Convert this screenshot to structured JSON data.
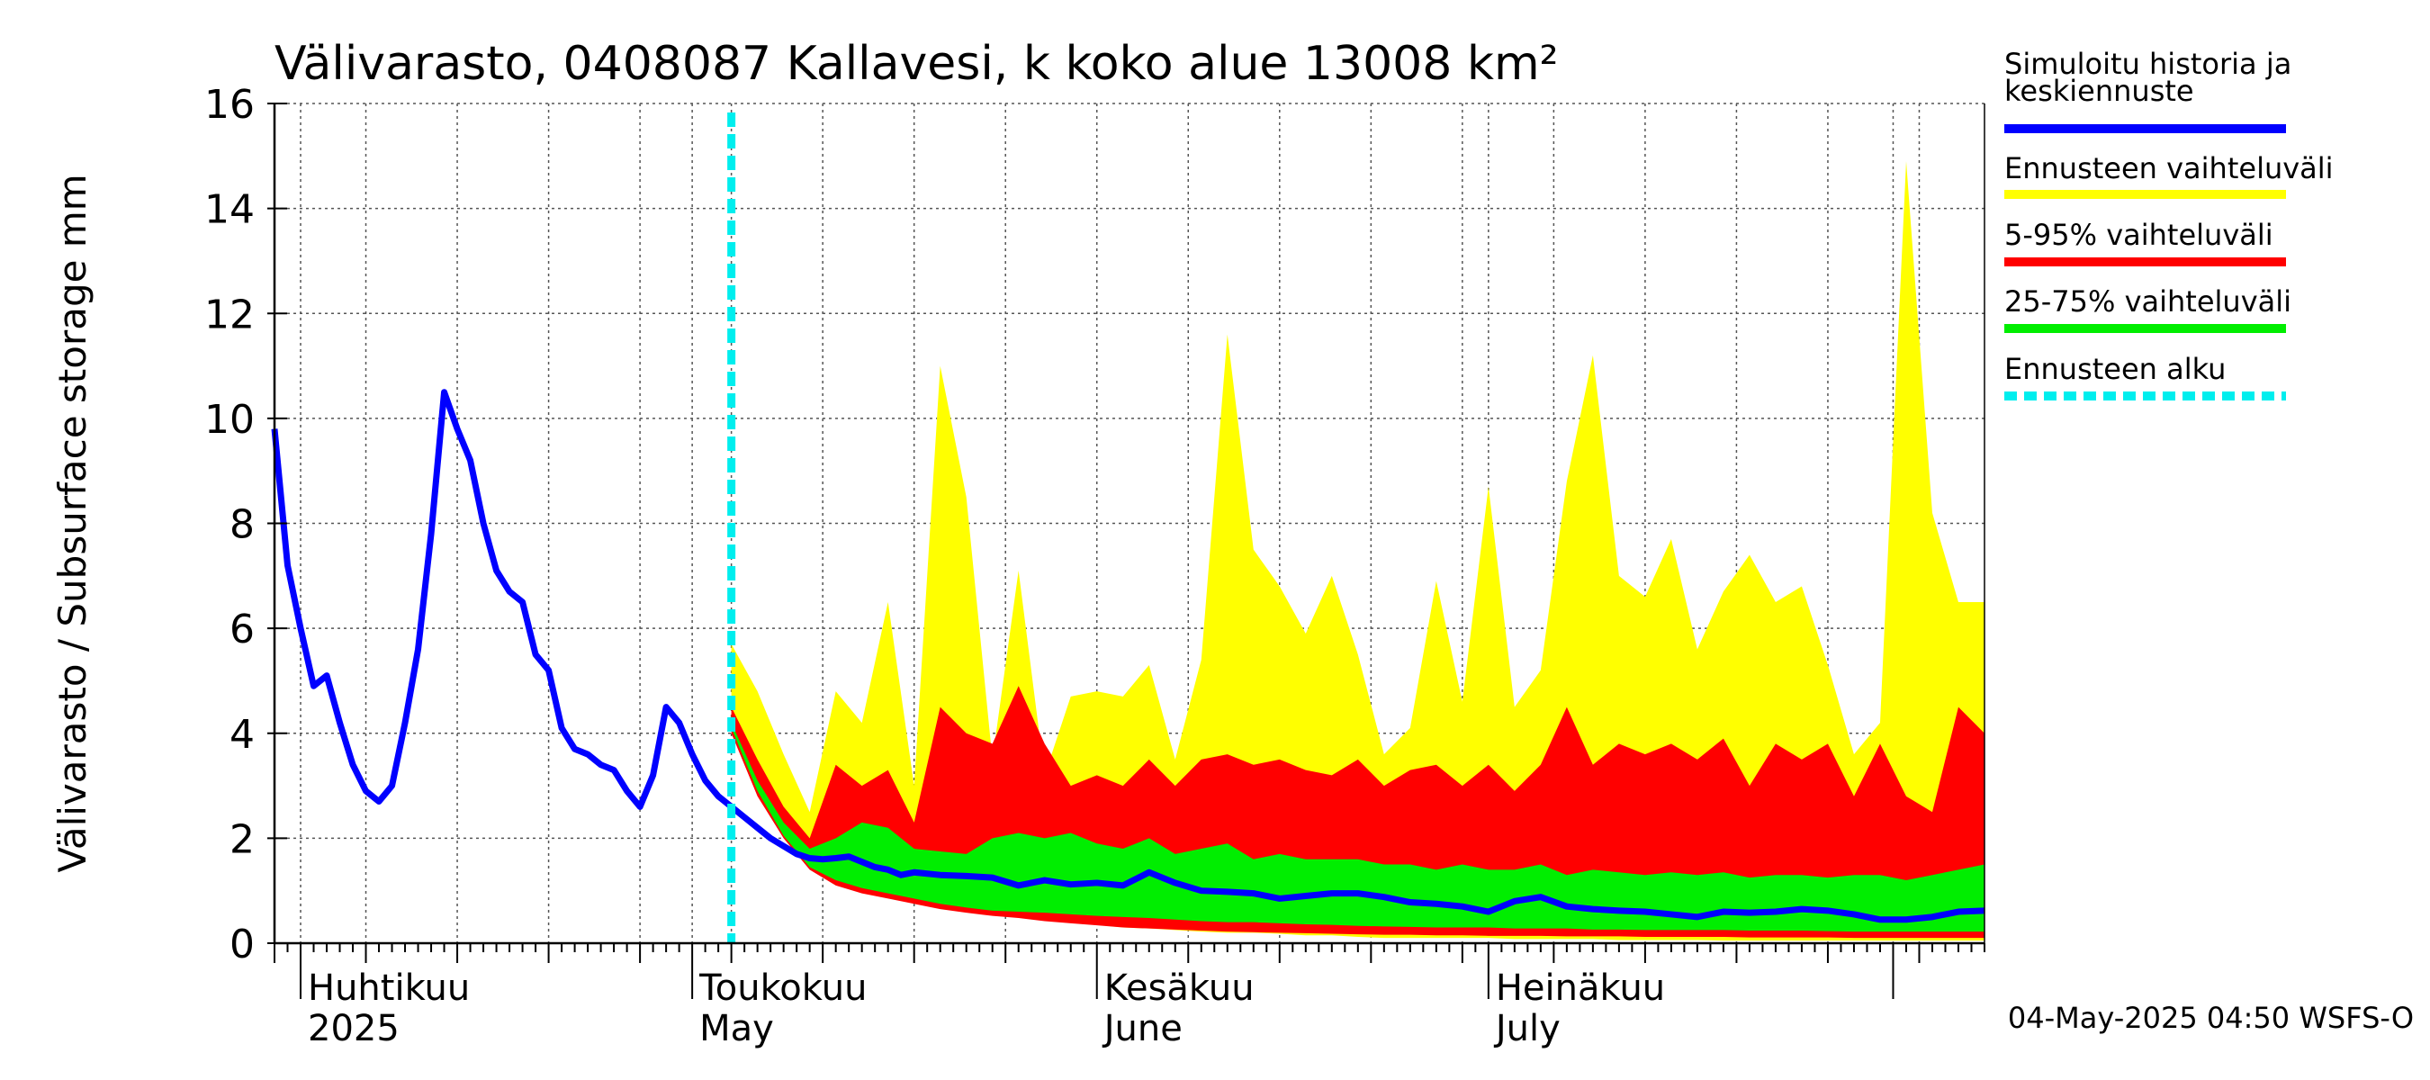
{
  "chart_data": {
    "type": "area",
    "title": "Välivarasto, 0408087 Kallavesi, k koko alue 13008 km²",
    "ylabel": "Välivarasto / Subsurface storage  mm",
    "xlabel": "",
    "ylim": [
      0,
      16
    ],
    "yticks": [
      0,
      2,
      4,
      6,
      8,
      10,
      12,
      14,
      16
    ],
    "x_start": "2025-03-30",
    "x_end": "2025-08-08",
    "grid": true,
    "month_labels": [
      {
        "date": "2025-04-01",
        "line1": "Huhtikuu",
        "line2": "2025"
      },
      {
        "date": "2025-05-01",
        "line1": "Toukokuu",
        "line2": "May"
      },
      {
        "date": "2025-06-01",
        "line1": "Kesäkuu",
        "line2": "June"
      },
      {
        "date": "2025-07-01",
        "line1": "Heinäkuu",
        "line2": "July"
      }
    ],
    "forecast_start": "2025-05-04",
    "history": {
      "name": "Simuloitu historia ja keskiennuste",
      "color": "#0000ff",
      "x": [
        "2025-03-30",
        "2025-03-31",
        "2025-04-01",
        "2025-04-02",
        "2025-04-03",
        "2025-04-04",
        "2025-04-05",
        "2025-04-06",
        "2025-04-07",
        "2025-04-08",
        "2025-04-09",
        "2025-04-10",
        "2025-04-11",
        "2025-04-12",
        "2025-04-13",
        "2025-04-14",
        "2025-04-15",
        "2025-04-16",
        "2025-04-17",
        "2025-04-18",
        "2025-04-19",
        "2025-04-20",
        "2025-04-21",
        "2025-04-22",
        "2025-04-23",
        "2025-04-24",
        "2025-04-25",
        "2025-04-26",
        "2025-04-27",
        "2025-04-28",
        "2025-04-29",
        "2025-04-30",
        "2025-05-01",
        "2025-05-02",
        "2025-05-03",
        "2025-05-04"
      ],
      "y": [
        9.8,
        7.2,
        6.0,
        4.9,
        5.1,
        4.2,
        3.4,
        2.9,
        2.7,
        3.0,
        4.2,
        5.6,
        7.8,
        10.5,
        9.8,
        9.2,
        8.0,
        7.1,
        6.7,
        6.5,
        5.5,
        5.2,
        4.1,
        3.7,
        3.6,
        3.4,
        3.3,
        2.9,
        2.6,
        3.2,
        4.5,
        4.2,
        3.6,
        3.1,
        2.8,
        2.6
      ]
    },
    "median_forecast": {
      "x": [
        "2025-05-04",
        "2025-05-05",
        "2025-05-06",
        "2025-05-07",
        "2025-05-08",
        "2025-05-09",
        "2025-05-10",
        "2025-05-11",
        "2025-05-12",
        "2025-05-13",
        "2025-05-14",
        "2025-05-15",
        "2025-05-16",
        "2025-05-17",
        "2025-05-18",
        "2025-05-20",
        "2025-05-22",
        "2025-05-24",
        "2025-05-26",
        "2025-05-28",
        "2025-05-30",
        "2025-06-01",
        "2025-06-03",
        "2025-06-05",
        "2025-06-07",
        "2025-06-09",
        "2025-06-11",
        "2025-06-13",
        "2025-06-15",
        "2025-06-17",
        "2025-06-19",
        "2025-06-21",
        "2025-06-23",
        "2025-06-25",
        "2025-06-27",
        "2025-06-29",
        "2025-07-01",
        "2025-07-03",
        "2025-07-05",
        "2025-07-07",
        "2025-07-09",
        "2025-07-11",
        "2025-07-13",
        "2025-07-15",
        "2025-07-17",
        "2025-07-19",
        "2025-07-21",
        "2025-07-23",
        "2025-07-25",
        "2025-07-27",
        "2025-07-29",
        "2025-07-31",
        "2025-08-02",
        "2025-08-04",
        "2025-08-06",
        "2025-08-08"
      ],
      "y": [
        2.6,
        2.4,
        2.2,
        2.0,
        1.85,
        1.7,
        1.62,
        1.6,
        1.62,
        1.65,
        1.55,
        1.45,
        1.4,
        1.3,
        1.35,
        1.3,
        1.28,
        1.25,
        1.1,
        1.2,
        1.12,
        1.15,
        1.1,
        1.35,
        1.15,
        1.0,
        0.98,
        0.95,
        0.85,
        0.9,
        0.95,
        0.95,
        0.88,
        0.78,
        0.75,
        0.7,
        0.6,
        0.8,
        0.88,
        0.7,
        0.65,
        0.62,
        0.6,
        0.55,
        0.5,
        0.6,
        0.58,
        0.6,
        0.65,
        0.62,
        0.55,
        0.45,
        0.45,
        0.5,
        0.6,
        0.62
      ]
    },
    "bands_x": [
      "2025-05-04",
      "2025-05-06",
      "2025-05-08",
      "2025-05-10",
      "2025-05-12",
      "2025-05-14",
      "2025-05-16",
      "2025-05-18",
      "2025-05-20",
      "2025-05-22",
      "2025-05-24",
      "2025-05-26",
      "2025-05-28",
      "2025-05-30",
      "2025-06-01",
      "2025-06-03",
      "2025-06-05",
      "2025-06-07",
      "2025-06-09",
      "2025-06-11",
      "2025-06-13",
      "2025-06-15",
      "2025-06-17",
      "2025-06-19",
      "2025-06-21",
      "2025-06-23",
      "2025-06-25",
      "2025-06-27",
      "2025-06-29",
      "2025-07-01",
      "2025-07-03",
      "2025-07-05",
      "2025-07-07",
      "2025-07-09",
      "2025-07-11",
      "2025-07-13",
      "2025-07-15",
      "2025-07-17",
      "2025-07-19",
      "2025-07-21",
      "2025-07-23",
      "2025-07-25",
      "2025-07-27",
      "2025-07-29",
      "2025-07-31",
      "2025-08-02",
      "2025-08-04",
      "2025-08-06",
      "2025-08-08"
    ],
    "bands": [
      {
        "name": "Ennusteen vaihteluväli",
        "color": "#ffff00",
        "upper": [
          5.7,
          4.8,
          3.6,
          2.5,
          4.8,
          4.2,
          6.5,
          3.0,
          11.0,
          8.5,
          3.5,
          7.1,
          3.2,
          4.7,
          4.8,
          4.7,
          5.3,
          3.5,
          5.4,
          11.6,
          7.5,
          6.8,
          5.9,
          7.0,
          5.5,
          3.6,
          4.1,
          6.9,
          4.6,
          8.7,
          4.5,
          5.2,
          8.8,
          11.2,
          7.0,
          6.6,
          7.7,
          5.6,
          6.7,
          7.4,
          6.5,
          6.8,
          5.3,
          3.6,
          4.2,
          14.9,
          8.2,
          6.5,
          6.5
        ],
        "lower": [
          4.2,
          3.0,
          2.2,
          1.5,
          1.2,
          1.0,
          0.9,
          0.8,
          0.7,
          0.6,
          0.55,
          0.5,
          0.45,
          0.4,
          0.35,
          0.3,
          0.28,
          0.25,
          0.22,
          0.2,
          0.2,
          0.18,
          0.15,
          0.15,
          0.12,
          0.1,
          0.1,
          0.1,
          0.1,
          0.1,
          0.08,
          0.08,
          0.08,
          0.08,
          0.06,
          0.06,
          0.06,
          0.06,
          0.05,
          0.05,
          0.05,
          0.05,
          0.05,
          0.05,
          0.05,
          0.05,
          0.05,
          0.05,
          0.05
        ]
      },
      {
        "name": "5-95% vaihteluväli",
        "color": "#ff0000",
        "upper": [
          4.5,
          3.5,
          2.6,
          2.0,
          3.4,
          3.0,
          3.3,
          2.3,
          4.5,
          4.0,
          3.8,
          4.9,
          3.8,
          3.0,
          3.2,
          3.0,
          3.5,
          3.0,
          3.5,
          3.6,
          3.4,
          3.5,
          3.3,
          3.2,
          3.5,
          3.0,
          3.3,
          3.4,
          3.0,
          3.4,
          2.9,
          3.4,
          4.5,
          3.4,
          3.8,
          3.6,
          3.8,
          3.5,
          3.9,
          3.0,
          3.8,
          3.5,
          3.8,
          2.8,
          3.8,
          2.8,
          2.5,
          4.5,
          4.0
        ],
        "lower": [
          4.0,
          2.8,
          2.0,
          1.4,
          1.1,
          0.95,
          0.85,
          0.75,
          0.65,
          0.58,
          0.52,
          0.48,
          0.42,
          0.38,
          0.34,
          0.3,
          0.28,
          0.26,
          0.24,
          0.22,
          0.21,
          0.2,
          0.19,
          0.18,
          0.17,
          0.16,
          0.16,
          0.15,
          0.15,
          0.14,
          0.14,
          0.14,
          0.13,
          0.13,
          0.13,
          0.12,
          0.12,
          0.12,
          0.12,
          0.11,
          0.11,
          0.11,
          0.11,
          0.1,
          0.1,
          0.1,
          0.1,
          0.1,
          0.1
        ]
      },
      {
        "name": "25-75% vaihteluväli",
        "color": "#00ee00",
        "upper": [
          4.2,
          3.1,
          2.3,
          1.8,
          2.0,
          2.3,
          2.2,
          1.8,
          1.75,
          1.7,
          2.0,
          2.1,
          2.0,
          2.1,
          1.9,
          1.8,
          2.0,
          1.7,
          1.8,
          1.9,
          1.6,
          1.7,
          1.6,
          1.6,
          1.6,
          1.5,
          1.5,
          1.4,
          1.5,
          1.4,
          1.4,
          1.5,
          1.3,
          1.4,
          1.35,
          1.3,
          1.35,
          1.3,
          1.35,
          1.25,
          1.3,
          1.3,
          1.25,
          1.3,
          1.3,
          1.2,
          1.3,
          1.4,
          1.5
        ],
        "lower": [
          4.1,
          2.9,
          2.05,
          1.45,
          1.2,
          1.05,
          0.95,
          0.85,
          0.75,
          0.68,
          0.62,
          0.6,
          0.58,
          0.55,
          0.52,
          0.5,
          0.48,
          0.45,
          0.42,
          0.4,
          0.4,
          0.38,
          0.36,
          0.35,
          0.33,
          0.32,
          0.31,
          0.3,
          0.3,
          0.3,
          0.28,
          0.28,
          0.28,
          0.26,
          0.26,
          0.25,
          0.25,
          0.25,
          0.25,
          0.24,
          0.24,
          0.24,
          0.23,
          0.22,
          0.22,
          0.22,
          0.22,
          0.22,
          0.22
        ]
      }
    ],
    "legend": [
      {
        "line1": "Simuloitu historia ja",
        "line2": "keskiennuste",
        "color": "#0000ff",
        "dashed": false
      },
      {
        "line1": "Ennusteen vaihteluväli",
        "line2": "",
        "color": "#ffff00",
        "dashed": false
      },
      {
        "line1": "5-95% vaihteluväli",
        "line2": "",
        "color": "#ff0000",
        "dashed": false
      },
      {
        "line1": "25-75% vaihteluväli",
        "line2": "",
        "color": "#00ee00",
        "dashed": false
      },
      {
        "line1": "Ennusteen alku",
        "line2": "",
        "color": "#00eeee",
        "dashed": true
      }
    ],
    "legend_position": "right",
    "footer": "04-May-2025 04:50 WSFS-O"
  }
}
